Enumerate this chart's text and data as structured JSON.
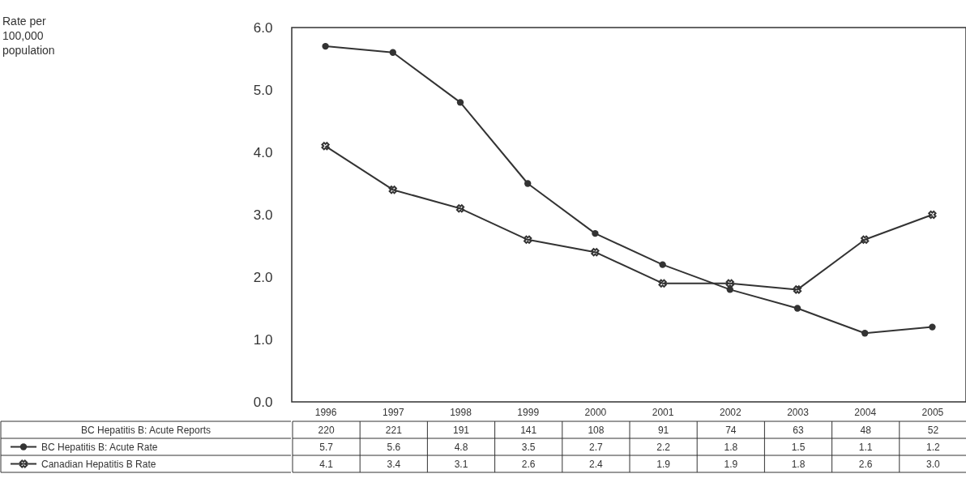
{
  "chart_data": {
    "type": "line",
    "categories": [
      "1996",
      "1997",
      "1998",
      "1999",
      "2000",
      "2001",
      "2002",
      "2003",
      "2004",
      "2005"
    ],
    "ylim": [
      0,
      6
    ],
    "yticks": [
      {
        "value": 0,
        "label": "0.0"
      },
      {
        "value": 1,
        "label": "1.0"
      },
      {
        "value": 2,
        "label": "2.0"
      },
      {
        "value": 3,
        "label": "3.0"
      },
      {
        "value": 4,
        "label": "4.0"
      },
      {
        "value": 5,
        "label": "5.0"
      },
      {
        "value": 6,
        "label": "6.0"
      }
    ],
    "grid": false,
    "legend": "bottom",
    "annotations": [
      "Rate per\n100,000\npopulation",
      "BC Hepatitis B: Acute Reports",
      "220",
      "221",
      "191",
      "141",
      "108",
      "91",
      "74",
      "63",
      "48",
      "52"
    ],
    "series": [
      {
        "name": "BC Hepatitis B: Acute Rate",
        "color": "#333333",
        "marker": "circle",
        "values": [
          5.7,
          5.6,
          4.8,
          3.5,
          2.7,
          2.2,
          1.8,
          1.5,
          1.1,
          1.2
        ],
        "value_labels": [
          "5.7",
          "5.6",
          "4.8",
          "3.5",
          "2.7",
          "2.2",
          "1.8",
          "1.5",
          "1.1",
          "1.2"
        ]
      },
      {
        "name": "Canadian Hepatitis B Rate",
        "color": "#333333",
        "marker": "cross",
        "values": [
          4.1,
          3.4,
          3.1,
          2.6,
          2.4,
          1.9,
          1.9,
          1.8,
          2.6,
          3.0
        ],
        "value_labels": [
          "4.1",
          "3.4",
          "3.1",
          "2.6",
          "2.4",
          "1.9",
          "1.9",
          "1.8",
          "2.6",
          "3.0"
        ]
      }
    ]
  }
}
